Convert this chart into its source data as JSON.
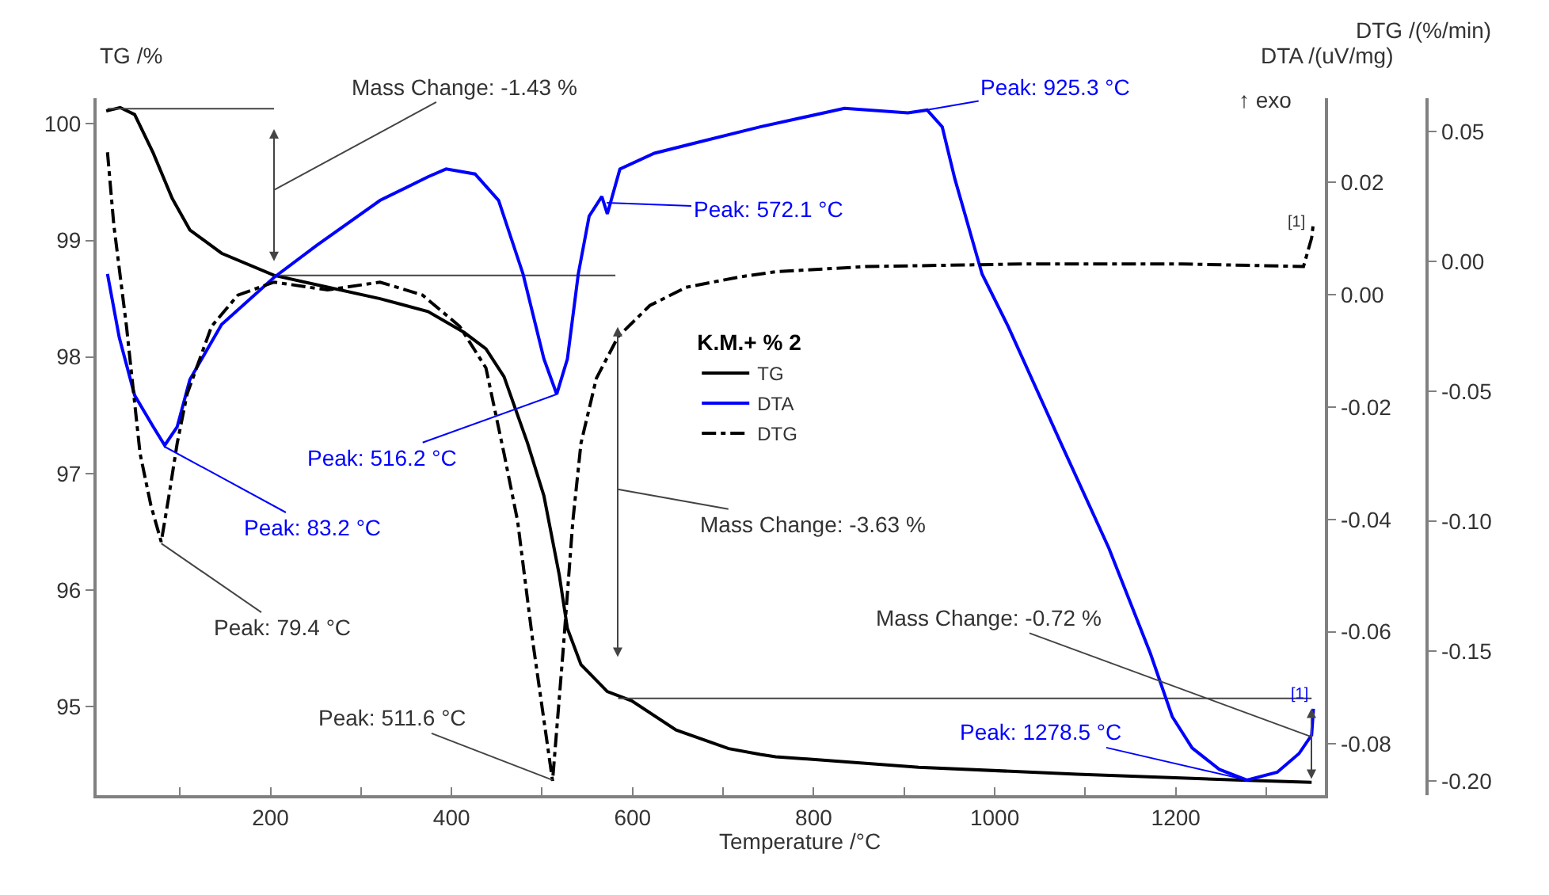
{
  "chart_data": {
    "type": "line",
    "xlabel": "Temperature /°C",
    "ylabel": "TG /%",
    "y2label": "DTA /(uV/mg)",
    "y3label": "DTG /(%/min)",
    "legend_title": "K.M.+ % 2",
    "legend": "center",
    "xlim": [
      8,
      1365
    ],
    "xticks": [
      {
        "value": 100,
        "label": null
      },
      200,
      {
        "value": 300,
        "label": null
      },
      400,
      {
        "value": 500,
        "label": null
      },
      600,
      {
        "value": 700,
        "label": null
      },
      800,
      {
        "value": 900,
        "label": null
      },
      1000,
      {
        "value": 1100,
        "label": null
      },
      1200,
      {
        "value": 1300,
        "label": null
      }
    ],
    "ylim": [
      94.24,
      100.22
    ],
    "yticks": [
      95,
      96,
      97,
      98,
      99,
      100
    ],
    "y2lim": [
      -0.0891,
      0.035
    ],
    "y2ticks": [
      {
        "value": -0.08,
        "label": "-0.08"
      },
      {
        "value": -0.06,
        "label": "-0.06"
      },
      {
        "value": -0.04,
        "label": "-0.04"
      },
      {
        "value": -0.02,
        "label": "-0.02"
      },
      {
        "value": 0,
        "label": "0.00"
      },
      {
        "value": 0.02,
        "label": "0.02"
      }
    ],
    "y3lim": [
      -0.2055,
      0.0628
    ],
    "y3ticks": [
      {
        "value": -0.2,
        "label": "-0.20"
      },
      {
        "value": -0.15,
        "label": "-0.15"
      },
      {
        "value": -0.1,
        "label": "-0.10"
      },
      {
        "value": -0.05,
        "label": "-0.05"
      },
      {
        "value": 0,
        "label": "0.00"
      },
      {
        "value": 0.05,
        "label": "0.05"
      }
    ],
    "series": [
      {
        "name": "TG",
        "color": "#000000",
        "axis": "y",
        "line_style": "solid",
        "x": [
          18.6,
          34,
          50,
          70.5,
          91.5,
          111,
          146,
          204,
          251,
          321,
          374,
          414,
          438,
          458,
          484,
          502,
          519,
          528,
          543,
          572,
          599,
          648,
          706,
          741,
          758,
          916,
          1091,
          1266,
          1350
        ],
        "values": [
          100.11,
          100.14,
          100.08,
          99.75,
          99.36,
          99.09,
          98.89,
          98.7,
          98.62,
          98.5,
          98.39,
          98.21,
          98.07,
          97.83,
          97.26,
          96.81,
          96.13,
          95.67,
          95.36,
          95.13,
          95.05,
          94.8,
          94.64,
          94.59,
          94.57,
          94.48,
          94.42,
          94.37,
          94.35
        ]
      },
      {
        "name": "DTA",
        "color": "#0000ff",
        "axis": "y2",
        "line_style": "solid",
        "x": [
          20,
          33,
          50,
          70.5,
          83.2,
          97,
          111,
          146,
          204,
          251,
          321,
          374,
          394,
          426,
          452,
          479,
          502,
          516.2,
          528,
          540,
          552,
          566,
          572.1,
          586,
          624,
          671,
          741,
          834,
          904,
          925.3,
          942,
          956,
          986,
          1015,
          1073,
          1126,
          1172,
          1196,
          1218,
          1248,
          1278.5,
          1312,
          1336,
          1350,
          1352
        ],
        "values": [
          0.0037,
          -0.0076,
          -0.0179,
          -0.0235,
          -0.0268,
          -0.0235,
          -0.0151,
          -0.0053,
          0.0031,
          0.0088,
          0.0168,
          0.021,
          0.0224,
          0.0215,
          0.0168,
          0.0037,
          -0.0114,
          -0.0177,
          -0.0114,
          0.0037,
          0.014,
          0.0175,
          0.0144,
          0.0224,
          0.0252,
          0.0271,
          0.0299,
          0.0332,
          0.0324,
          0.0329,
          0.0299,
          0.0206,
          0.0037,
          -0.0057,
          -0.0264,
          -0.0451,
          -0.0639,
          -0.0751,
          -0.0807,
          -0.0845,
          -0.0864,
          -0.085,
          -0.0817,
          -0.0784,
          -0.0737
        ]
      },
      {
        "name": "DTG",
        "color": "#000000",
        "axis": "y3",
        "line_style": "dashdot",
        "x": [
          20,
          27,
          41,
          56,
          68,
          79.4,
          88,
          97,
          108,
          135,
          164,
          204,
          263,
          321,
          368,
          409,
          438,
          458,
          473,
          490,
          511.6,
          523,
          534,
          543,
          560,
          584,
          619,
          659,
          718,
          758,
          858,
          1033,
          1207,
          1341,
          1350,
          1352
        ],
        "values": [
          0.042,
          0.014,
          -0.025,
          -0.074,
          -0.094,
          -0.108,
          -0.09,
          -0.07,
          -0.051,
          -0.025,
          -0.013,
          -0.008,
          -0.011,
          -0.008,
          -0.013,
          -0.025,
          -0.041,
          -0.074,
          -0.1,
          -0.147,
          -0.2,
          -0.151,
          -0.1,
          -0.07,
          -0.045,
          -0.029,
          -0.017,
          -0.01,
          -0.006,
          -0.004,
          -0.002,
          -0.001,
          -0.001,
          -0.002,
          0.009,
          0.015
        ]
      },
      {
        "color": "#444444",
        "axis": "y",
        "line_style": "solid",
        "x": [
          20,
          204
        ],
        "values": [
          100.13,
          100.13
        ]
      },
      {
        "color": "#444444",
        "axis": "y",
        "line_style": "solid",
        "x": [
          204,
          581
        ],
        "values": [
          98.7,
          98.7
        ]
      },
      {
        "color": "#444444",
        "axis": "y",
        "line_style": "solid",
        "x": [
          584,
          1350
        ],
        "values": [
          95.07,
          95.07
        ]
      }
    ],
    "annotations": [
      "Mass Change: -1.43 %",
      "Peak: 572.1 °C",
      {
        "text": "Peak: 925.3 °C",
        "x": 925.3,
        "y": 100.12
      },
      {
        "text": "Peak: 516.2 °C",
        "x": 516.2,
        "y": 97.68
      },
      {
        "text": "Peak: 83.2 °C",
        "x": 83.2,
        "y": 97.23
      },
      "Mass Change: -3.63 %",
      {
        "text": "Peak: 79.4 °C",
        "x": 79.4,
        "y": 96.4
      },
      {
        "text": "Mass Change: -0.72 %",
        "x": 1350,
        "y": 94.74
      },
      {
        "text": "Peak: 511.6 °C",
        "x": 511.6,
        "y": 94.37
      },
      {
        "text": "Peak: 1278.5 °C",
        "x": 1278.5,
        "y": 94.37
      },
      "[1]",
      "[1]",
      "↑ exo"
    ]
  }
}
